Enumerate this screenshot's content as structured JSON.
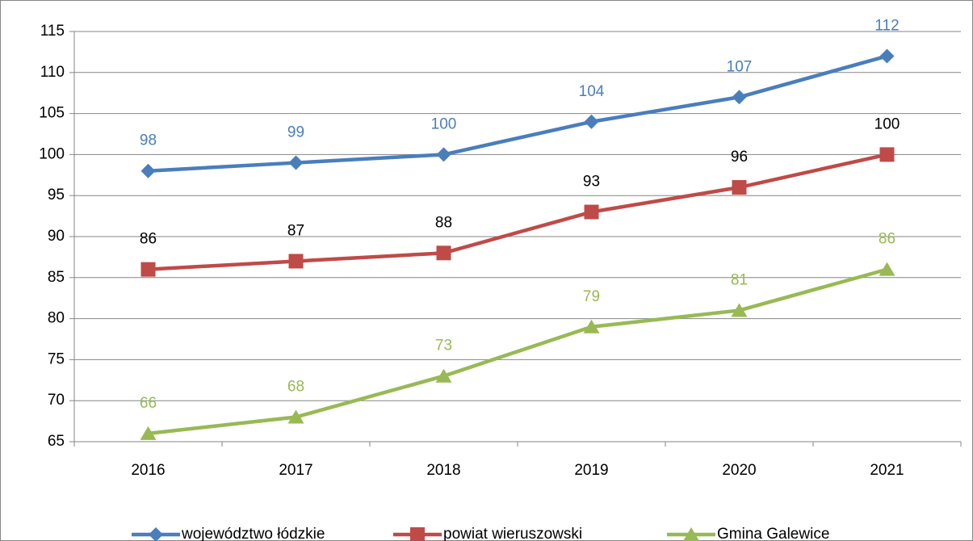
{
  "chart_data": {
    "type": "line",
    "categories": [
      "2016",
      "2017",
      "2018",
      "2019",
      "2020",
      "2021"
    ],
    "series": [
      {
        "name": "województwo łódzkie",
        "color": "#4a7ebb",
        "label_color": "#4a7ebb",
        "marker": "diamond",
        "values": [
          98,
          99,
          100,
          104,
          107,
          112
        ]
      },
      {
        "name": "powiat wieruszowski",
        "color": "#be4b48",
        "label_color": "#000000",
        "marker": "square",
        "values": [
          86,
          87,
          88,
          93,
          96,
          100
        ]
      },
      {
        "name": "Gmina Galewice",
        "color": "#98b954",
        "label_color": "#98b954",
        "marker": "triangle",
        "values": [
          66,
          68,
          73,
          79,
          81,
          86
        ]
      }
    ],
    "ylim": [
      65,
      115
    ],
    "yticks": [
      65,
      70,
      75,
      80,
      85,
      90,
      95,
      100,
      105,
      110,
      115
    ],
    "grid": true,
    "legend": "bottom"
  }
}
